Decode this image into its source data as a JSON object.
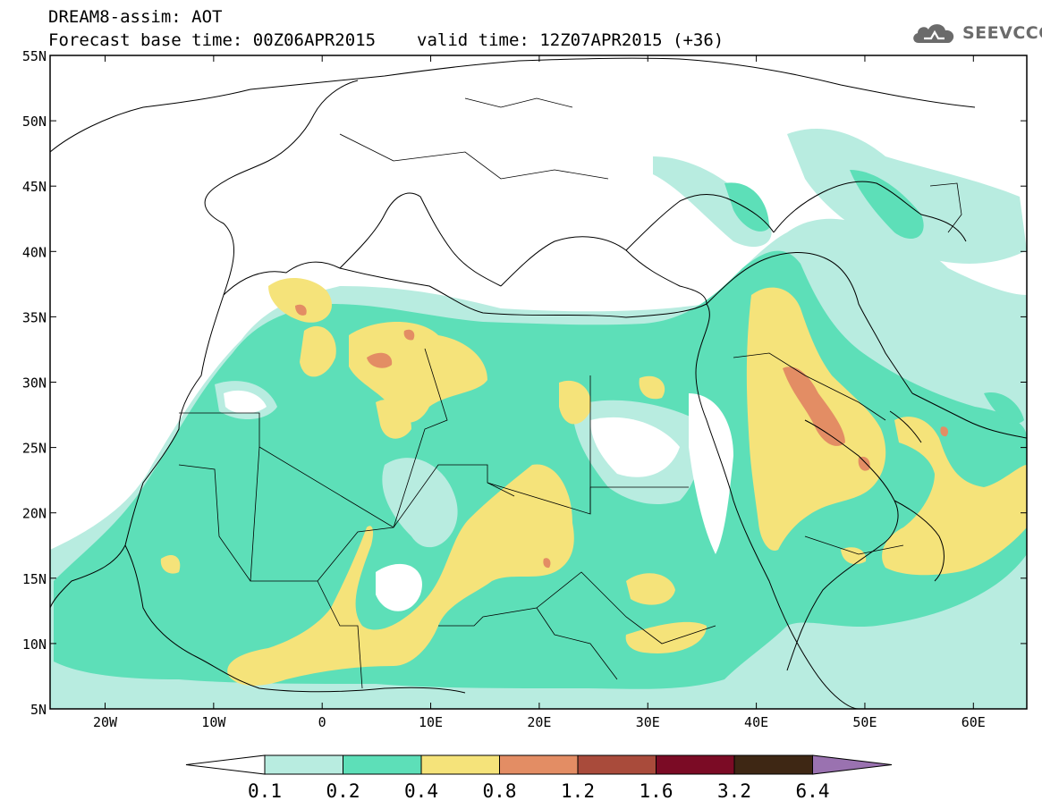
{
  "header": {
    "model_title": "DREAM8-assim: AOT",
    "base_time": "Forecast base time: 00Z06APR2015",
    "valid_time": "valid time: 12Z07APR2015 (+36)"
  },
  "logo": {
    "text": "SEEVCCC",
    "icon": "cloud-icon",
    "color": "#6b6b6b"
  },
  "map": {
    "lat_labels": [
      "55N",
      "50N",
      "45N",
      "40N",
      "35N",
      "30N",
      "25N",
      "20N",
      "15N",
      "10N",
      "5N"
    ],
    "lon_labels": [
      "20W",
      "10W",
      "0",
      "10E",
      "20E",
      "30E",
      "40E",
      "50E",
      "60E"
    ]
  },
  "colorbar": {
    "colors": [
      "#ffffff",
      "#b8ece0",
      "#5ddfb8",
      "#f5e37a",
      "#e38d64",
      "#a94b3b",
      "#7b0b25",
      "#3e2714",
      "#9a72b0"
    ],
    "labels": [
      "0.1",
      "0.2",
      "0.4",
      "0.8",
      "1.2",
      "1.6",
      "3.2",
      "6.4"
    ]
  }
}
